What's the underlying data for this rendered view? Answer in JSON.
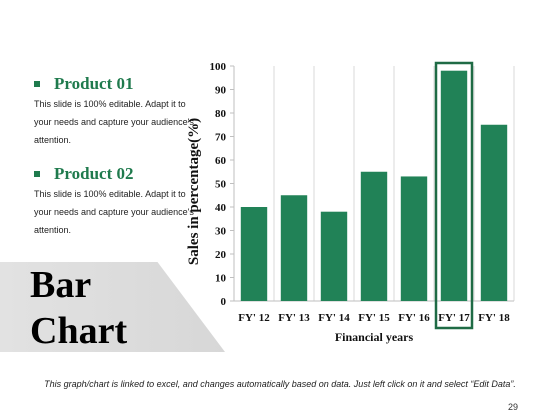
{
  "products": [
    {
      "title": "Product 01",
      "desc": "This slide is 100% editable. Adapt it to your needs and capture your audience's attention."
    },
    {
      "title": "Product 02",
      "desc": "This slide is 100% editable. Adapt it to your needs and capture your audience's attention."
    }
  ],
  "banner": {
    "line1": "Bar",
    "line2": "Chart"
  },
  "footnote": "This graph/chart is linked to excel, and changes automatically based on data. Just left click on it and select “Edit Data”.",
  "page_number": "29",
  "colors": {
    "accent": "#1f7a4d",
    "bar": "#218257",
    "highlight_border": "#1f6b45"
  },
  "icons": {
    "bullet": "square-bullet-icon"
  },
  "chart_data": {
    "type": "bar",
    "categories": [
      "FY' 12",
      "FY' 13",
      "FY' 14",
      "FY' 15",
      "FY' 16",
      "FY' 17",
      "FY' 18"
    ],
    "values": [
      40,
      45,
      38,
      55,
      53,
      98,
      75
    ],
    "xlabel": "Financial years",
    "ylabel": "Sales in percentage(%)",
    "ylim": [
      0,
      100
    ],
    "yticks": [
      0,
      10,
      20,
      30,
      40,
      50,
      60,
      70,
      80,
      90,
      100
    ],
    "grid": "vertical",
    "highlight": "FY' 17"
  }
}
